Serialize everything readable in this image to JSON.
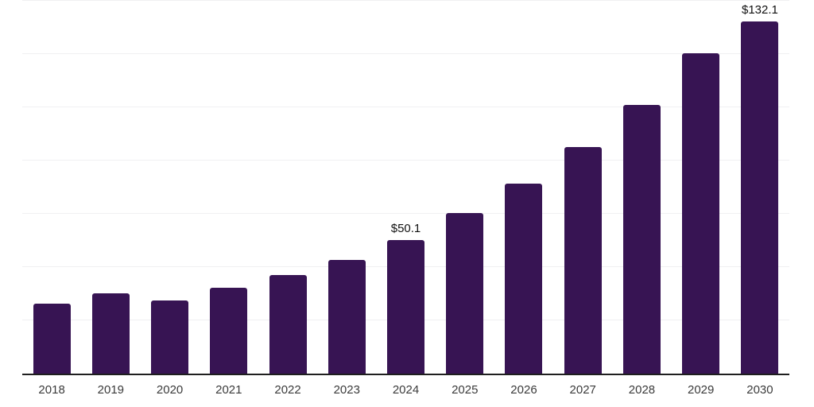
{
  "chart_data": {
    "type": "bar",
    "title": "",
    "xlabel": "",
    "ylabel": "",
    "categories": [
      "2018",
      "2019",
      "2020",
      "2021",
      "2022",
      "2023",
      "2024",
      "2025",
      "2026",
      "2027",
      "2028",
      "2029",
      "2030"
    ],
    "values": [
      26.3,
      30.2,
      27.6,
      32.3,
      36.9,
      42.6,
      50.1,
      60.2,
      71.2,
      85.1,
      100.9,
      120.3,
      132.1
    ],
    "value_labels": [
      {
        "category": "2024",
        "text": "$50.1"
      },
      {
        "category": "2030",
        "text": "$132.1"
      }
    ],
    "ylim": [
      0,
      140
    ],
    "grid_step": 20,
    "grid": true,
    "y_tick_labels_visible": false,
    "legend": "none",
    "colors": {
      "bar": "#371453",
      "gridline": "#f0f0f2",
      "axis_line": "#1f1f1f",
      "x_label_text": "#3b3b3b",
      "value_label_text": "#111111",
      "background": "#ffffff"
    }
  }
}
